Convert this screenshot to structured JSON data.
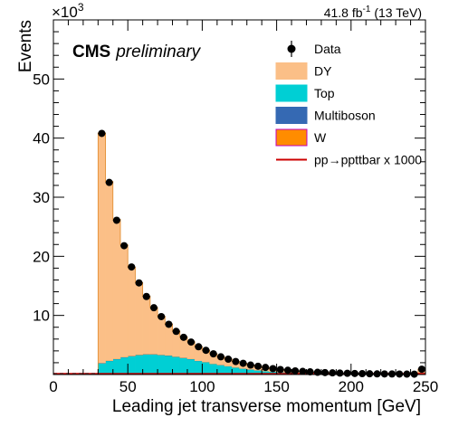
{
  "header": {
    "exponent_base": "×10",
    "exponent_power": "3",
    "lumi_value": "41.8 fb",
    "lumi_power": "-1",
    "lumi_energy": " (13 TeV)"
  },
  "labels": {
    "cms": "CMS",
    "preliminary": "preliminary"
  },
  "legend": {
    "items": [
      {
        "label": "Data",
        "kind": "marker",
        "color": "#000000"
      },
      {
        "label": "DY",
        "kind": "fill",
        "color": "#fbbf87"
      },
      {
        "label": "Top",
        "kind": "fill",
        "color": "#00cfd4"
      },
      {
        "label": "Multiboson",
        "kind": "fill",
        "color": "#3569b3"
      },
      {
        "label": "W",
        "kind": "fill",
        "color": "#ff8c00",
        "edge": "#c000c0"
      },
      {
        "label": "pp→ppttbar x 1000",
        "kind": "line",
        "color": "#cc0000"
      }
    ]
  },
  "chart_data": {
    "type": "area",
    "xlabel": "Leading jet transverse momentum [GeV]",
    "ylabel": "Events",
    "xlim": [
      0,
      250
    ],
    "ylim": [
      0,
      60
    ],
    "x_ticks": [
      0,
      50,
      100,
      150,
      200,
      250
    ],
    "y_ticks": [
      10,
      20,
      30,
      40,
      50
    ],
    "y_scale_note": "×10^3",
    "bin_width": 5,
    "bins": [
      30,
      35,
      40,
      45,
      50,
      55,
      60,
      65,
      70,
      75,
      80,
      85,
      90,
      95,
      100,
      105,
      110,
      115,
      120,
      125,
      130,
      135,
      140,
      145,
      150,
      155,
      160,
      165,
      170,
      175,
      180,
      185,
      190,
      195,
      200,
      205,
      210,
      215,
      220,
      225,
      230,
      235,
      240,
      245
    ],
    "series": [
      {
        "name": "Data",
        "style": "points",
        "color": "#000000",
        "values": [
          40.8,
          32.5,
          26.1,
          21.8,
          18.2,
          15.5,
          13.2,
          11.3,
          9.8,
          8.5,
          7.3,
          6.3,
          5.5,
          4.7,
          4.1,
          3.5,
          3.0,
          2.6,
          2.2,
          1.9,
          1.6,
          1.4,
          1.2,
          1.0,
          0.85,
          0.72,
          0.62,
          0.53,
          0.45,
          0.38,
          0.33,
          0.28,
          0.24,
          0.21,
          0.18,
          0.15,
          0.13,
          0.11,
          0.1,
          0.09,
          0.08,
          0.07,
          0.06,
          0.9
        ]
      },
      {
        "name": "Top",
        "style": "fill",
        "color": "#00cfd4",
        "values": [
          1.9,
          2.3,
          2.6,
          2.9,
          3.1,
          3.3,
          3.4,
          3.4,
          3.3,
          3.2,
          3.0,
          2.8,
          2.6,
          2.3,
          2.1,
          1.8,
          1.6,
          1.4,
          1.2,
          1.0,
          0.85,
          0.7,
          0.58,
          0.48,
          0.4,
          0.33,
          0.27,
          0.22,
          0.18,
          0.15,
          0.12,
          0.1,
          0.08,
          0.07,
          0.06,
          0.05,
          0.04,
          0.035,
          0.03,
          0.025,
          0.02,
          0.018,
          0.015,
          0.2
        ]
      },
      {
        "name": "Multiboson",
        "style": "fill",
        "color": "#3569b3",
        "values": [
          0.05,
          0.05,
          0.05,
          0.05,
          0.05,
          0.05,
          0.05,
          0.05,
          0.04,
          0.04,
          0.04,
          0.04,
          0.04,
          0.03,
          0.03,
          0.03,
          0.03,
          0.02,
          0.02,
          0.02,
          0.02,
          0.02,
          0.01,
          0.01,
          0.01,
          0.01,
          0.01,
          0.01,
          0.01,
          0.01,
          0.01,
          0.01,
          0.01,
          0.01,
          0.01,
          0.01,
          0.01,
          0.01,
          0.01,
          0.01,
          0.01,
          0.01,
          0.01,
          0.01
        ]
      },
      {
        "name": "W",
        "style": "fill",
        "color": "#ff8c00",
        "values": [
          0.02,
          0.02,
          0.02,
          0.02,
          0.02,
          0.02,
          0.02,
          0.02,
          0.02,
          0.02,
          0.02,
          0.02,
          0.02,
          0.01,
          0.01,
          0.01,
          0.01,
          0.01,
          0.01,
          0.01,
          0.01,
          0.01,
          0.01,
          0.01,
          0.01,
          0.01,
          0.01,
          0.01,
          0.01,
          0.01,
          0.01,
          0.01,
          0.01,
          0.01,
          0.01,
          0.01,
          0.01,
          0.01,
          0.01,
          0.01,
          0.01,
          0.01,
          0.01,
          0.01
        ]
      },
      {
        "name": "DY",
        "style": "fill",
        "color": "#fbbf87",
        "values": [
          38.9,
          30.3,
          23.6,
          19.0,
          15.0,
          12.2,
          9.8,
          7.9,
          6.5,
          5.3,
          4.3,
          3.5,
          2.9,
          2.4,
          2.0,
          1.7,
          1.4,
          1.2,
          1.0,
          0.9,
          0.75,
          0.68,
          0.6,
          0.5,
          0.44,
          0.38,
          0.34,
          0.3,
          0.26,
          0.22,
          0.2,
          0.17,
          0.15,
          0.13,
          0.11,
          0.09,
          0.08,
          0.07,
          0.06,
          0.055,
          0.05,
          0.045,
          0.04,
          0.7
        ]
      },
      {
        "name": "pp→ppttbar x 1000",
        "style": "line",
        "color": "#cc0000",
        "values": [
          0,
          0,
          0,
          0,
          0,
          0,
          0,
          0,
          0,
          0,
          0,
          0,
          0,
          0,
          0,
          0,
          0,
          0,
          0,
          0,
          0,
          0,
          0,
          0,
          0,
          0,
          0,
          0,
          0,
          0,
          0,
          0,
          0,
          0,
          0,
          0,
          0,
          0,
          0,
          0,
          0,
          0,
          0,
          0
        ]
      }
    ]
  }
}
